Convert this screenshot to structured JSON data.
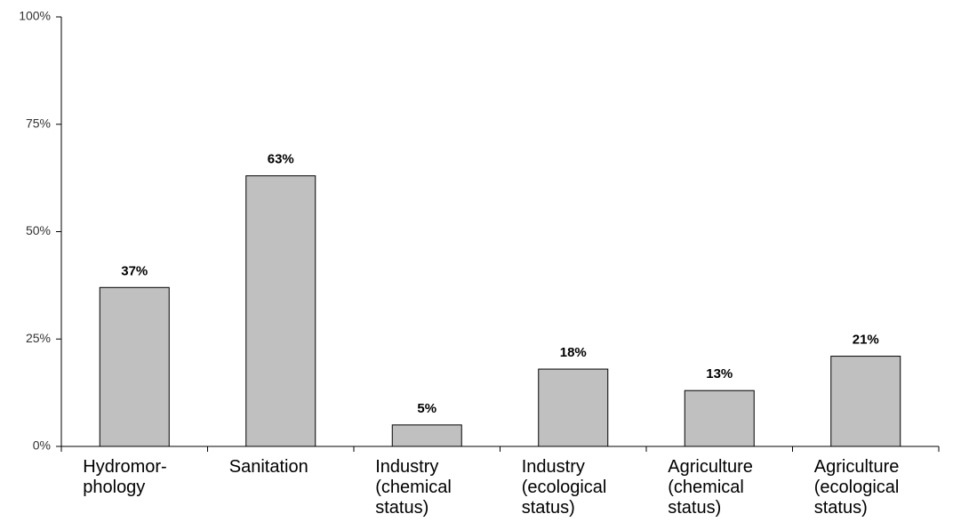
{
  "chart_data": {
    "type": "bar",
    "categories": [
      "Hydromor-\nphology",
      "Sanitation",
      "Industry\n(chemical\nstatus)",
      "Industry\n(ecological\nstatus)",
      "Agriculture\n(chemical\nstatus)",
      "Agriculture\n(ecological\nstatus)"
    ],
    "values": [
      37,
      63,
      5,
      18,
      13,
      21
    ],
    "value_labels": [
      "37%",
      "63%",
      "5%",
      "18%",
      "13%",
      "21%"
    ],
    "color": "#c0c0c0",
    "ylim": [
      0,
      100
    ],
    "yticks": [
      {
        "value": 0,
        "label": "0%"
      },
      {
        "value": 25,
        "label": "25%"
      },
      {
        "value": 50,
        "label": "50%"
      },
      {
        "value": 75,
        "label": "75%"
      },
      {
        "value": 100,
        "label": "100%"
      }
    ]
  }
}
